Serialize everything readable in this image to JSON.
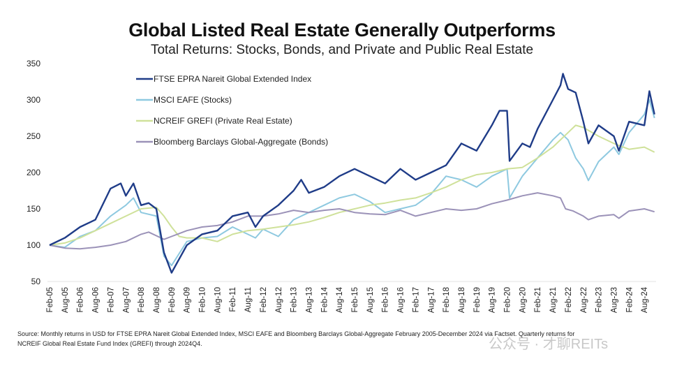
{
  "title": "Global Listed Real Estate Generally Outperforms",
  "subtitle": "Total Returns: Stocks, Bonds, and Private and Public Real Estate",
  "source_line1": "Source: Monthly returns in USD for FTSE EPRA Nareit Global Extended Index, MSCI EAFE and Bloomberg Barclays Global-Aggregate February 2005-December 2024 via Factset. Quarterly returns for",
  "source_line2": "NCREIF Global Real Estate Fund Index (GREFI) through 2024Q4.",
  "watermark": "公众号 · 才聊REITs",
  "chart_data": {
    "type": "line",
    "title": "Global Listed Real Estate Generally Outperforms",
    "ylim": [
      50,
      350
    ],
    "yticks": [
      "50",
      "100",
      "150",
      "200",
      "250",
      "300",
      "350"
    ],
    "xticks": [
      "Feb-05",
      "Aug-05",
      "Feb-06",
      "Aug-06",
      "Feb-07",
      "Aug-07",
      "Feb-08",
      "Aug-08",
      "Feb-09",
      "Aug-09",
      "Feb-10",
      "Aug-10",
      "Feb-11",
      "Aug-11",
      "Feb-12",
      "Aug-12",
      "Feb-13",
      "Aug-13",
      "Feb-14",
      "Aug-14",
      "Feb-15",
      "Aug-15",
      "Feb-16",
      "Aug-16",
      "Feb-17",
      "Aug-17",
      "Feb-18",
      "Aug-18",
      "Feb-19",
      "Aug-19",
      "Feb-20",
      "Aug-20",
      "Feb-21",
      "Aug-21",
      "Feb-22",
      "Aug-22",
      "Feb-23",
      "Aug-23",
      "Feb-24",
      "Aug-24"
    ],
    "grid": false,
    "legend_position": "top-left",
    "series": [
      {
        "name": "FTSE EPRA Nareit Global Extended Index",
        "color": "#1f3c88",
        "x": [
          "2005-02",
          "2005-08",
          "2006-02",
          "2006-08",
          "2007-02",
          "2007-06",
          "2007-08",
          "2007-11",
          "2008-02",
          "2008-05",
          "2008-08",
          "2008-11",
          "2009-02",
          "2009-08",
          "2010-02",
          "2010-08",
          "2011-02",
          "2011-08",
          "2011-11",
          "2012-02",
          "2012-08",
          "2013-02",
          "2013-05",
          "2013-08",
          "2014-02",
          "2014-08",
          "2015-02",
          "2015-08",
          "2016-02",
          "2016-08",
          "2017-02",
          "2017-08",
          "2018-02",
          "2018-08",
          "2019-02",
          "2019-08",
          "2019-11",
          "2020-02",
          "2020-03",
          "2020-08",
          "2020-11",
          "2021-02",
          "2021-08",
          "2021-11",
          "2021-12",
          "2022-02",
          "2022-05",
          "2022-08",
          "2022-10",
          "2023-02",
          "2023-08",
          "2023-10",
          "2024-02",
          "2024-08",
          "2024-10",
          "2024-12"
        ],
        "y": [
          100,
          110,
          125,
          135,
          178,
          185,
          168,
          185,
          155,
          158,
          150,
          90,
          62,
          100,
          115,
          120,
          140,
          145,
          125,
          140,
          155,
          175,
          190,
          172,
          180,
          195,
          205,
          195,
          185,
          205,
          190,
          200,
          210,
          240,
          230,
          265,
          285,
          285,
          216,
          240,
          235,
          260,
          300,
          320,
          336,
          315,
          310,
          270,
          240,
          265,
          250,
          230,
          270,
          265,
          312,
          280
        ]
      },
      {
        "name": "MSCI EAFE (Stocks)",
        "color": "#8ec9e0",
        "x": [
          "2005-02",
          "2005-08",
          "2006-02",
          "2006-08",
          "2007-02",
          "2007-08",
          "2007-11",
          "2008-02",
          "2008-08",
          "2008-11",
          "2009-02",
          "2009-08",
          "2010-02",
          "2010-08",
          "2011-02",
          "2011-08",
          "2011-11",
          "2012-02",
          "2012-08",
          "2013-02",
          "2013-08",
          "2014-02",
          "2014-08",
          "2015-02",
          "2015-08",
          "2016-02",
          "2016-08",
          "2017-02",
          "2017-08",
          "2018-02",
          "2018-08",
          "2019-02",
          "2019-08",
          "2020-02",
          "2020-03",
          "2020-08",
          "2021-02",
          "2021-08",
          "2021-11",
          "2022-02",
          "2022-05",
          "2022-08",
          "2022-10",
          "2023-02",
          "2023-08",
          "2023-10",
          "2024-02",
          "2024-08",
          "2024-10",
          "2024-12"
        ],
        "y": [
          100,
          97,
          112,
          120,
          140,
          155,
          165,
          145,
          140,
          85,
          72,
          105,
          110,
          112,
          125,
          115,
          110,
          122,
          112,
          135,
          145,
          155,
          165,
          170,
          160,
          145,
          150,
          155,
          170,
          195,
          190,
          180,
          195,
          205,
          165,
          195,
          220,
          245,
          255,
          245,
          220,
          205,
          189,
          215,
          235,
          225,
          255,
          280,
          300,
          275
        ]
      },
      {
        "name": "NCREIF GREFI (Private Real Estate)",
        "color": "#cfe19a",
        "x": [
          "2005-02",
          "2005-08",
          "2006-02",
          "2006-08",
          "2007-02",
          "2007-08",
          "2008-02",
          "2008-08",
          "2008-11",
          "2009-02",
          "2009-05",
          "2009-08",
          "2010-02",
          "2010-08",
          "2011-02",
          "2011-08",
          "2012-02",
          "2012-08",
          "2013-02",
          "2013-08",
          "2014-02",
          "2014-08",
          "2015-02",
          "2015-08",
          "2016-02",
          "2016-08",
          "2017-02",
          "2017-08",
          "2018-02",
          "2018-08",
          "2019-02",
          "2019-08",
          "2020-02",
          "2020-08",
          "2021-02",
          "2021-08",
          "2022-02",
          "2022-05",
          "2022-08",
          "2023-02",
          "2023-08",
          "2024-02",
          "2024-08",
          "2024-12"
        ],
        "y": [
          100,
          103,
          110,
          120,
          130,
          140,
          150,
          152,
          140,
          125,
          112,
          110,
          110,
          105,
          115,
          120,
          122,
          125,
          128,
          132,
          138,
          145,
          150,
          155,
          158,
          162,
          165,
          172,
          180,
          190,
          197,
          200,
          205,
          207,
          220,
          235,
          255,
          265,
          262,
          250,
          240,
          232,
          235,
          228
        ]
      },
      {
        "name": "Bloomberg Barclays Global-Aggregate (Bonds)",
        "color": "#9b92b8",
        "x": [
          "2005-02",
          "2005-08",
          "2006-02",
          "2006-08",
          "2007-02",
          "2007-08",
          "2008-02",
          "2008-05",
          "2008-08",
          "2008-11",
          "2009-02",
          "2009-08",
          "2010-02",
          "2010-08",
          "2011-02",
          "2011-08",
          "2012-02",
          "2012-08",
          "2013-02",
          "2013-08",
          "2014-02",
          "2014-08",
          "2015-02",
          "2015-08",
          "2016-02",
          "2016-08",
          "2017-02",
          "2017-08",
          "2018-02",
          "2018-08",
          "2019-02",
          "2019-08",
          "2020-02",
          "2020-08",
          "2021-02",
          "2021-08",
          "2021-11",
          "2022-01",
          "2022-04",
          "2022-08",
          "2022-10",
          "2023-02",
          "2023-08",
          "2023-10",
          "2024-02",
          "2024-08",
          "2024-12"
        ],
        "y": [
          100,
          96,
          95,
          97,
          100,
          105,
          115,
          118,
          113,
          108,
          112,
          120,
          125,
          127,
          132,
          140,
          140,
          143,
          148,
          145,
          148,
          150,
          145,
          143,
          142,
          148,
          140,
          145,
          150,
          148,
          150,
          157,
          162,
          168,
          172,
          168,
          165,
          150,
          147,
          140,
          135,
          140,
          142,
          137,
          147,
          150,
          146
        ]
      }
    ]
  }
}
